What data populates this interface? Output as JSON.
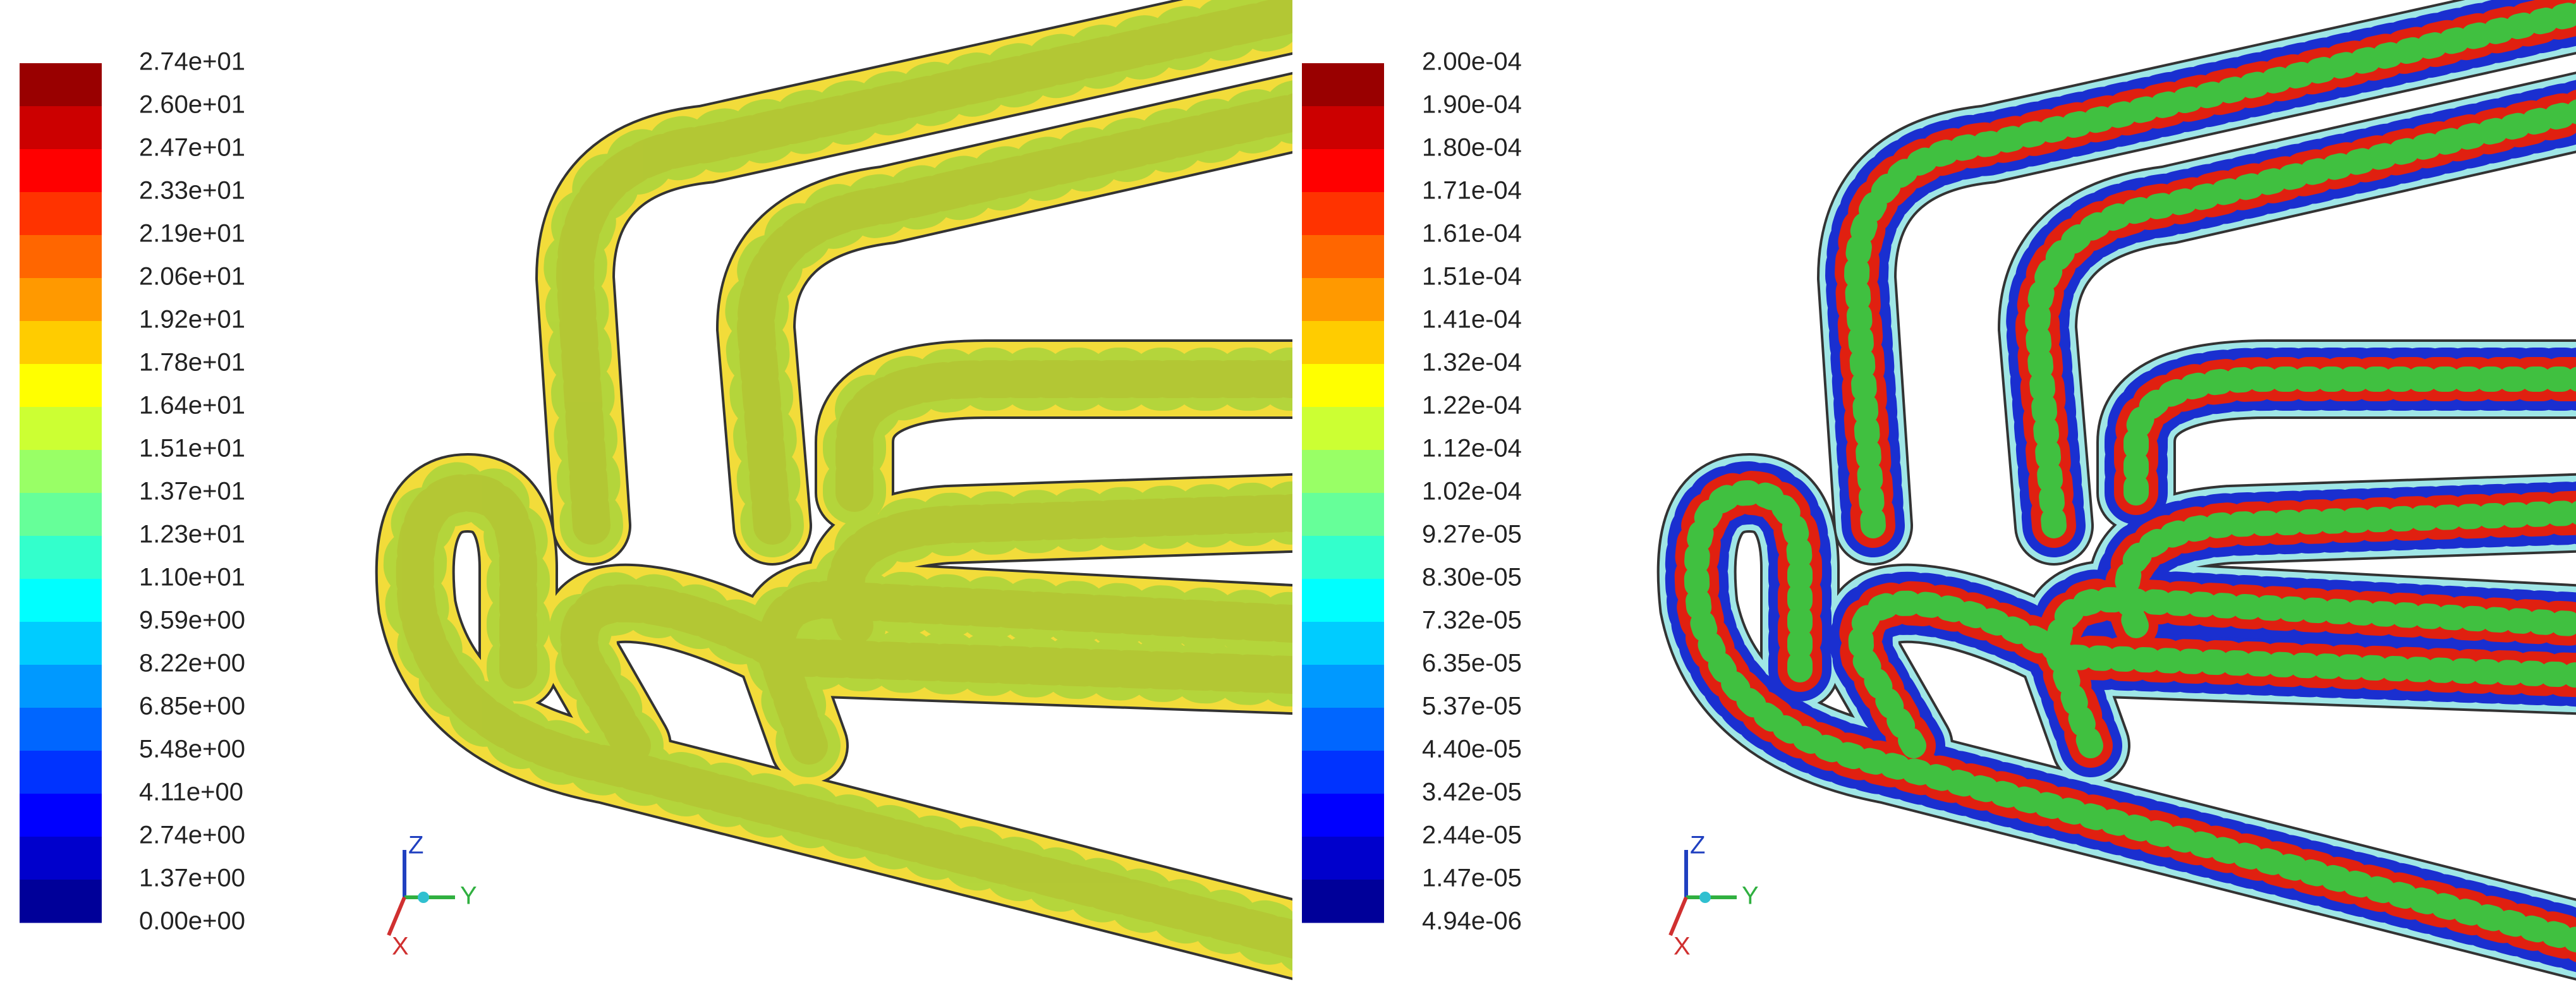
{
  "left_panel": {
    "colorbar_labels": [
      "2.74e+01",
      "2.60e+01",
      "2.47e+01",
      "2.33e+01",
      "2.19e+01",
      "2.06e+01",
      "1.92e+01",
      "1.78e+01",
      "1.64e+01",
      "1.51e+01",
      "1.37e+01",
      "1.23e+01",
      "1.10e+01",
      "9.59e+00",
      "8.22e+00",
      "6.85e+00",
      "5.48e+00",
      "4.11e+00",
      "2.74e+00",
      "1.37e+00",
      "0.00e+00"
    ],
    "axis_labels": [
      "Z",
      "Y",
      "X"
    ]
  },
  "right_panel": {
    "colorbar_labels": [
      "2.00e-04",
      "1.90e-04",
      "1.80e-04",
      "1.71e-04",
      "1.61e-04",
      "1.51e-04",
      "1.41e-04",
      "1.32e-04",
      "1.22e-04",
      "1.12e-04",
      "1.02e-04",
      "9.27e-05",
      "8.30e-05",
      "7.32e-05",
      "6.35e-05",
      "5.37e-05",
      "4.40e-05",
      "3.42e-05",
      "2.44e-05",
      "1.47e-05",
      "4.94e-06"
    ],
    "axis_labels": [
      "Z",
      "Y",
      "X"
    ]
  }
}
